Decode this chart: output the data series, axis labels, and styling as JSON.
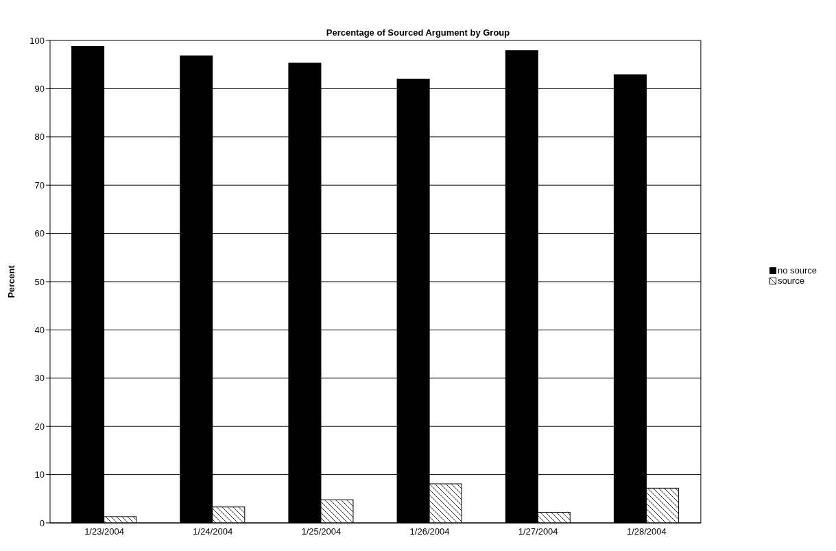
{
  "chart_data": {
    "type": "bar",
    "title": "Percentage of Sourced Argument by Group",
    "ylabel": "Percent",
    "categories": [
      "1/23/2004",
      "1/24/2004",
      "1/25/2004",
      "1/26/2004",
      "1/27/2004",
      "1/28/2004"
    ],
    "series": [
      {
        "name": "no source",
        "color": "#000000",
        "values": [
          98.8,
          96.8,
          95.3,
          92.0,
          97.9,
          92.9
        ]
      },
      {
        "name": "source",
        "color": "#ffffff",
        "values": [
          1.3,
          3.3,
          4.8,
          8.1,
          2.2,
          7.2
        ]
      }
    ],
    "ylim": [
      0,
      100
    ],
    "yticks": [
      0,
      10,
      20,
      30,
      40,
      50,
      60,
      70,
      80,
      90,
      100
    ],
    "grid": "y",
    "legend": "right"
  }
}
